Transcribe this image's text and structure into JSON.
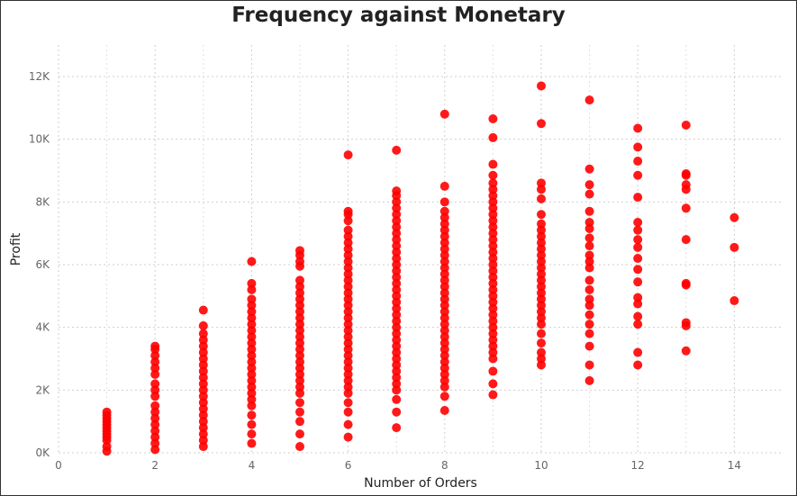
{
  "chart_data": {
    "type": "scatter",
    "title": "Frequency against Monetary",
    "xlabel": "Number of Orders",
    "ylabel": "Profit",
    "xlim": [
      0,
      15
    ],
    "ylim": [
      0,
      13000
    ],
    "x_ticks": [
      0,
      2,
      4,
      6,
      8,
      10,
      12,
      14
    ],
    "y_ticks": [
      0,
      2000,
      4000,
      6000,
      8000,
      10000,
      12000
    ],
    "y_tick_labels": [
      "0K",
      "2K",
      "4K",
      "6K",
      "8K",
      "10K",
      "12K"
    ],
    "grid": true,
    "marker_color": "#ff0000",
    "x": [
      1,
      1,
      1,
      1,
      1,
      1,
      1,
      1,
      1,
      1,
      1,
      1,
      2,
      2,
      2,
      2,
      2,
      2,
      2,
      2,
      2,
      2,
      2,
      2,
      2,
      2,
      2,
      2,
      2,
      3,
      3,
      3,
      3,
      3,
      3,
      3,
      3,
      3,
      3,
      3,
      3,
      3,
      3,
      3,
      3,
      3,
      3,
      3,
      3,
      3,
      4,
      4,
      4,
      4,
      4,
      4,
      4,
      4,
      4,
      4,
      4,
      4,
      4,
      4,
      4,
      4,
      4,
      4,
      4,
      4,
      4,
      4,
      4,
      4,
      4,
      5,
      5,
      5,
      5,
      5,
      5,
      5,
      5,
      5,
      5,
      5,
      5,
      5,
      5,
      5,
      5,
      5,
      5,
      5,
      5,
      5,
      5,
      5,
      5,
      5,
      5,
      5,
      5,
      6,
      6,
      6,
      6,
      6,
      6,
      6,
      6,
      6,
      6,
      6,
      6,
      6,
      6,
      6,
      6,
      6,
      6,
      6,
      6,
      6,
      6,
      6,
      6,
      6,
      6,
      6,
      6,
      6,
      6,
      6,
      6,
      6,
      6,
      6,
      7,
      7,
      7,
      7,
      7,
      7,
      7,
      7,
      7,
      7,
      7,
      7,
      7,
      7,
      7,
      7,
      7,
      7,
      7,
      7,
      7,
      7,
      7,
      7,
      7,
      7,
      7,
      7,
      7,
      7,
      7,
      7,
      7,
      7,
      7,
      7,
      7,
      8,
      8,
      8,
      8,
      8,
      8,
      8,
      8,
      8,
      8,
      8,
      8,
      8,
      8,
      8,
      8,
      8,
      8,
      8,
      8,
      8,
      8,
      8,
      8,
      8,
      8,
      8,
      8,
      8,
      8,
      8,
      8,
      8,
      8,
      9,
      9,
      9,
      9,
      9,
      9,
      9,
      9,
      9,
      9,
      9,
      9,
      9,
      9,
      9,
      9,
      9,
      9,
      9,
      9,
      9,
      9,
      9,
      9,
      9,
      9,
      9,
      9,
      9,
      9,
      9,
      9,
      9,
      9,
      9,
      9,
      10,
      10,
      10,
      10,
      10,
      10,
      10,
      10,
      10,
      10,
      10,
      10,
      10,
      10,
      10,
      10,
      10,
      10,
      10,
      10,
      10,
      10,
      10,
      10,
      10,
      10,
      10,
      10,
      11,
      11,
      11,
      11,
      11,
      11,
      11,
      11,
      11,
      11,
      11,
      11,
      11,
      11,
      11,
      11,
      11,
      11,
      11,
      11,
      11,
      11,
      12,
      12,
      12,
      12,
      12,
      12,
      12,
      12,
      12,
      12,
      12,
      12,
      12,
      12,
      12,
      12,
      12,
      12,
      13,
      13,
      13,
      13,
      13,
      13,
      13,
      13,
      13,
      13,
      13,
      13,
      14,
      14,
      14
    ],
    "y": [
      1300,
      1200,
      1100,
      1000,
      900,
      800,
      700,
      600,
      500,
      400,
      200,
      50,
      3400,
      3300,
      3100,
      2900,
      2700,
      2500,
      2200,
      2000,
      1800,
      1500,
      1300,
      1100,
      900,
      700,
      500,
      300,
      100,
      4550,
      4050,
      3800,
      3600,
      3400,
      3200,
      3000,
      2800,
      2600,
      2400,
      2200,
      2000,
      1800,
      1600,
      1400,
      1200,
      1000,
      800,
      600,
      400,
      200,
      6100,
      5400,
      5200,
      4900,
      4700,
      4500,
      4300,
      4100,
      3900,
      3700,
      3500,
      3300,
      3100,
      2900,
      2700,
      2500,
      2300,
      2100,
      1900,
      1700,
      1500,
      1200,
      900,
      600,
      300,
      6450,
      6300,
      6100,
      5950,
      5500,
      5300,
      5100,
      4900,
      4700,
      4500,
      4300,
      4100,
      3900,
      3700,
      3500,
      3300,
      3100,
      2900,
      2700,
      2500,
      2300,
      2100,
      1900,
      1600,
      1300,
      1000,
      600,
      200,
      9500,
      7700,
      7600,
      7400,
      7100,
      6900,
      6700,
      6500,
      6300,
      6100,
      5900,
      5700,
      5500,
      5300,
      5100,
      4900,
      4700,
      4500,
      4300,
      4100,
      3900,
      3700,
      3500,
      3300,
      3100,
      2900,
      2700,
      2500,
      2300,
      2100,
      1900,
      1600,
      1300,
      900,
      500,
      9650,
      8350,
      8200,
      8000,
      7800,
      7600,
      7400,
      7200,
      7000,
      6800,
      6600,
      6400,
      6200,
      6000,
      5800,
      5600,
      5400,
      5200,
      5000,
      4800,
      4600,
      4400,
      4200,
      4000,
      3800,
      3600,
      3400,
      3200,
      3000,
      2800,
      2600,
      2400,
      2200,
      2000,
      1700,
      1300,
      800,
      10800,
      8500,
      8000,
      7700,
      7500,
      7300,
      7100,
      6900,
      6700,
      6500,
      6300,
      6100,
      5900,
      5700,
      5500,
      5300,
      5100,
      4900,
      4700,
      4500,
      4300,
      4100,
      3900,
      3700,
      3500,
      3300,
      3100,
      2900,
      2700,
      2500,
      2300,
      2100,
      1800,
      1350,
      10650,
      10050,
      9200,
      8850,
      8600,
      8400,
      8200,
      8000,
      7800,
      7600,
      7400,
      7200,
      7000,
      6800,
      6600,
      6400,
      6200,
      6000,
      5800,
      5600,
      5400,
      5200,
      5000,
      4800,
      4600,
      4400,
      4200,
      4000,
      3800,
      3600,
      3400,
      3200,
      3000,
      2600,
      2200,
      1850,
      11700,
      10500,
      8600,
      8400,
      8100,
      7600,
      7300,
      7100,
      6900,
      6700,
      6500,
      6300,
      6100,
      5900,
      5700,
      5500,
      5300,
      5100,
      4900,
      4700,
      4500,
      4300,
      4100,
      3800,
      3500,
      3200,
      3000,
      2800,
      11250,
      9050,
      8550,
      8250,
      7700,
      7350,
      7150,
      6850,
      6600,
      6300,
      6100,
      5900,
      5500,
      5200,
      4900,
      4700,
      4400,
      4100,
      3800,
      3400,
      2800,
      2300,
      10350,
      9750,
      9300,
      8850,
      8150,
      7350,
      7100,
      6800,
      6550,
      6200,
      5850,
      5450,
      4950,
      4750,
      4350,
      4100,
      3200,
      2800,
      10450,
      8900,
      8850,
      8550,
      8400,
      7800,
      6800,
      5400,
      5350,
      4150,
      4050,
      3250,
      7500,
      6550,
      4850
    ]
  }
}
